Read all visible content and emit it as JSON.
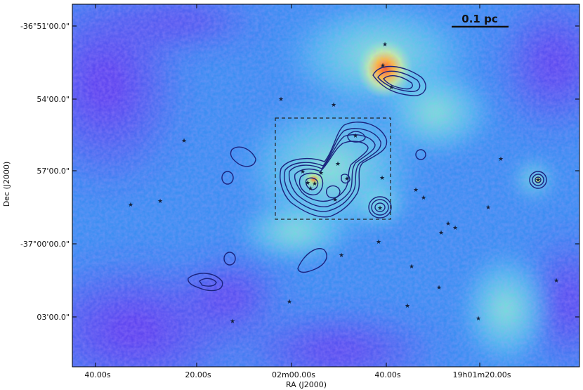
{
  "figure": {
    "scale_bar_label": "0.1 pc",
    "x_axis_title": "RA (J2000)",
    "y_axis_title": "Dec (J2000)",
    "x_tick_labels": [
      "40.00s",
      "20.00s",
      "02m00.00s",
      "40.00s",
      "19h01m20.00s"
    ],
    "y_tick_labels": [
      "-36°51'00.0\"",
      "54'00.0\"",
      "57'00.0\"",
      "-37°00'00.0\"",
      "03'00.0\""
    ],
    "colormap": "rainbow (purple-blue-cyan-green-yellow-red)",
    "colors": {
      "background_low": "#7a3cf0",
      "mid": "#2fa0f4",
      "high": "#6fe9c8",
      "peak": "#ff6a1e",
      "contour": "#1a237e",
      "box": "#222222",
      "star": "#14213d"
    },
    "star_marker": "*",
    "zoom_box": "dashed"
  }
}
